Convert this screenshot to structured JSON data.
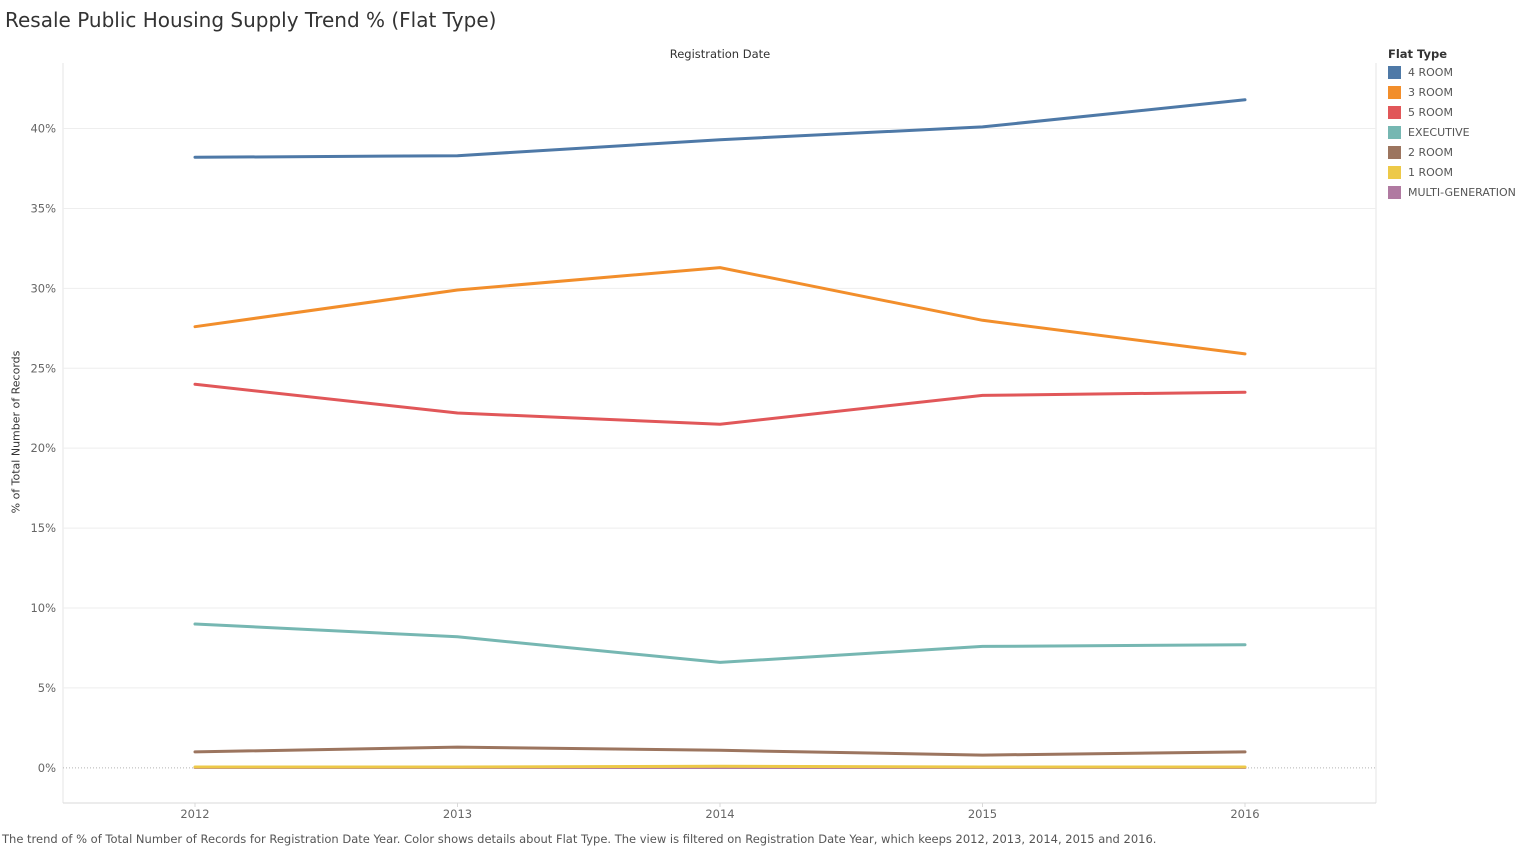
{
  "title": "Resale Public Housing Supply Trend % (Flat Type)",
  "column_header": "Registration Date",
  "caption": "The trend of % of Total Number of Records for Registration Date Year.  Color shows details about Flat Type. The view is filtered on Registration Date Year, which keeps 2012, 2013, 2014, 2015 and 2016.",
  "legend": {
    "title": "Flat Type",
    "items": [
      {
        "label": "4 ROOM",
        "color": "#4e79a7"
      },
      {
        "label": "3 ROOM",
        "color": "#f28e2b"
      },
      {
        "label": "5 ROOM",
        "color": "#e15759"
      },
      {
        "label": "EXECUTIVE",
        "color": "#76b7b2"
      },
      {
        "label": "2 ROOM",
        "color": "#9c755f"
      },
      {
        "label": "1 ROOM",
        "color": "#edc948"
      },
      {
        "label": "MULTI-GENERATION",
        "color": "#b07aa1"
      }
    ]
  },
  "chart_data": {
    "type": "line",
    "title": "Resale Public Housing Supply Trend % (Flat Type)",
    "xlabel": "Registration Date",
    "ylabel": "% of Total Number of Records",
    "x": [
      "2012",
      "2013",
      "2014",
      "2015",
      "2016"
    ],
    "y_ticks": [
      0,
      5,
      10,
      15,
      20,
      25,
      30,
      35,
      40
    ],
    "y_tick_labels": [
      "0%",
      "5%",
      "10%",
      "15%",
      "20%",
      "25%",
      "30%",
      "35%",
      "40%"
    ],
    "ylim": [
      -2.2,
      44.1
    ],
    "grid": true,
    "legend_position": "right",
    "series": [
      {
        "name": "4 ROOM",
        "color": "#4e79a7",
        "values": [
          38.2,
          38.3,
          39.3,
          40.1,
          41.8
        ]
      },
      {
        "name": "3 ROOM",
        "color": "#f28e2b",
        "values": [
          27.6,
          29.9,
          31.3,
          28.0,
          25.9
        ]
      },
      {
        "name": "5 ROOM",
        "color": "#e15759",
        "values": [
          24.0,
          22.2,
          21.5,
          23.3,
          23.5
        ]
      },
      {
        "name": "EXECUTIVE",
        "color": "#76b7b2",
        "values": [
          9.0,
          8.2,
          6.6,
          7.6,
          7.7
        ]
      },
      {
        "name": "2 ROOM",
        "color": "#9c755f",
        "values": [
          1.0,
          1.3,
          1.1,
          0.8,
          1.0
        ]
      },
      {
        "name": "1 ROOM",
        "color": "#edc948",
        "values": [
          0.05,
          0.05,
          0.1,
          0.05,
          0.05
        ]
      },
      {
        "name": "MULTI-GENERATION",
        "color": "#b07aa1",
        "values": [
          0.02,
          0.02,
          0.02,
          0.02,
          0.02
        ]
      }
    ]
  }
}
